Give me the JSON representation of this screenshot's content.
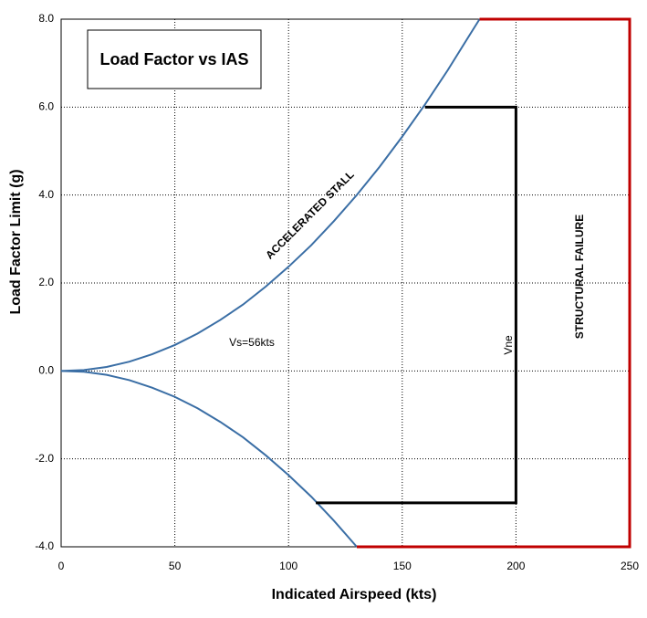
{
  "chart_data": {
    "type": "line",
    "title": "Load Factor vs IAS",
    "x_label": "Indicated Airspeed (kts)",
    "y_label": "Load Factor Limit (g)",
    "xlim": [
      0,
      250
    ],
    "ylim": [
      -4,
      8
    ],
    "xticks": [
      0,
      50,
      100,
      150,
      200,
      250
    ],
    "yticks": [
      {
        "value": 8,
        "label": "8.0"
      },
      {
        "value": 6,
        "label": "6.0"
      },
      {
        "value": 4,
        "label": "4.0"
      },
      {
        "value": 2,
        "label": "2.0"
      },
      {
        "value": 0,
        "label": "0.0"
      },
      {
        "value": -2,
        "label": "-2.0"
      },
      {
        "value": -4,
        "label": "-4.0"
      }
    ],
    "grid": true,
    "series": [
      {
        "color": "#3a6ea5",
        "x": [
          0,
          10,
          20,
          30,
          40,
          50,
          60,
          70,
          80,
          90,
          100,
          110,
          120,
          130,
          140,
          150,
          160,
          170,
          180,
          184
        ],
        "values": [
          0,
          0.02,
          0.09,
          0.21,
          0.38,
          0.59,
          0.85,
          1.16,
          1.51,
          1.92,
          2.37,
          2.86,
          3.41,
          4.0,
          4.64,
          5.33,
          6.06,
          6.84,
          7.67,
          8.0
        ]
      },
      {
        "color": "#3a6ea5",
        "x": [
          0,
          10,
          20,
          30,
          40,
          50,
          60,
          70,
          80,
          90,
          100,
          110,
          120,
          130
        ],
        "values": [
          0,
          -0.02,
          -0.09,
          -0.21,
          -0.38,
          -0.59,
          -0.85,
          -1.16,
          -1.51,
          -1.92,
          -2.37,
          -2.86,
          -3.41,
          -4.0
        ]
      },
      {
        "color": "#000000",
        "x": [
          160,
          200,
          200,
          112
        ],
        "values": [
          6,
          6,
          -3,
          -3
        ]
      },
      {
        "color": "#c00000",
        "x": [
          184,
          250,
          250,
          130
        ],
        "values": [
          8,
          8,
          -4,
          -4
        ]
      }
    ],
    "annotations": [
      "ACCELERATED STALL",
      "Vs=56kts",
      "Vne",
      "STRUCTURAL FAILURE"
    ]
  }
}
